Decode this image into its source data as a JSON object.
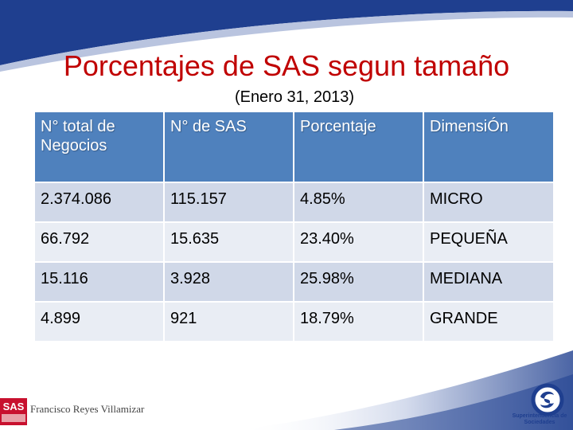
{
  "slide": {
    "title": "Porcentajes de SAS segun tamaño",
    "subtitle": "(Enero 31, 2013)"
  },
  "table": {
    "headers": [
      "N° total de Negocios",
      "N° de SAS",
      "Porcentaje",
      "DimensiÓn"
    ],
    "rows": [
      [
        "2.374.086",
        "115.157",
        "4.85%",
        "MICRO"
      ],
      [
        "66.792",
        "15.635",
        "23.40%",
        "PEQUEÑA"
      ],
      [
        "15.116",
        "3.928",
        "25.98%",
        "MEDIANA"
      ],
      [
        "4.899",
        "921",
        "18.79%",
        "GRANDE"
      ]
    ]
  },
  "footer": {
    "author": "Francisco Reyes Villamizar",
    "sas_logo_text": "SAS",
    "super_logo_caption": "Superintendencia de Sociedades"
  },
  "colors": {
    "header_fill": "#4f81bd",
    "row_odd": "#d0d8e8",
    "row_even": "#e9edf4",
    "title": "#c00000",
    "swoosh": "#1f3f8f"
  }
}
